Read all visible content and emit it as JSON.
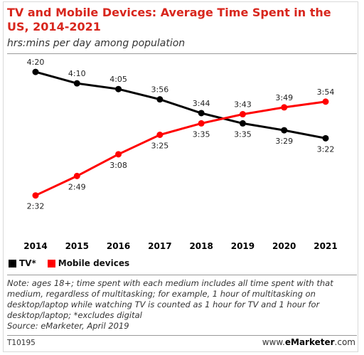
{
  "header": {
    "title": "TV and Mobile Devices: Average Time Spent in the US, 2014-2021",
    "subtitle": "hrs:mins per day among population"
  },
  "chart_data": {
    "type": "line",
    "title": "TV and Mobile Devices: Average Time Spent in the US, 2014-2021",
    "subtitle": "hrs:mins per day among population",
    "xlabel": "",
    "ylabel": "",
    "categories": [
      "2014",
      "2015",
      "2016",
      "2017",
      "2018",
      "2019",
      "2020",
      "2021"
    ],
    "ylim": [
      140,
      270
    ],
    "grid": false,
    "legend_position": "bottom-left",
    "series": [
      {
        "name": "TV*",
        "color": "#000000",
        "values": [
          260,
          250,
          245,
          236,
          224,
          215,
          209,
          202
        ],
        "labels": [
          "4:20",
          "4:10",
          "4:05",
          "3:56",
          "3:44",
          "3:35",
          "3:29",
          "3:22"
        ]
      },
      {
        "name": "Mobile devices",
        "color": "#ff0000",
        "values": [
          152,
          169,
          188,
          205,
          215,
          223,
          229,
          234
        ],
        "labels": [
          "2:32",
          "2:49",
          "3:08",
          "3:25",
          "3:35",
          "3:43",
          "3:49",
          "3:54"
        ]
      }
    ]
  },
  "legend": {
    "tv_label": "TV*",
    "mobile_label": "Mobile devices",
    "tv_color": "#000000",
    "mobile_color": "#ff0000"
  },
  "note": "Note: ages 18+; time spent with each medium includes all time spent with that medium, regardless of multitasking; for example, 1 hour of multitasking on desktop/laptop while watching TV is counted as 1 hour for TV and 1 hour for desktop/laptop; *excludes digital",
  "source": "Source: eMarketer, April 2019",
  "footer": {
    "chart_id": "T10195",
    "brand_prefix": "www.",
    "brand_name": "eMarketer",
    "brand_suffix": ".com"
  }
}
